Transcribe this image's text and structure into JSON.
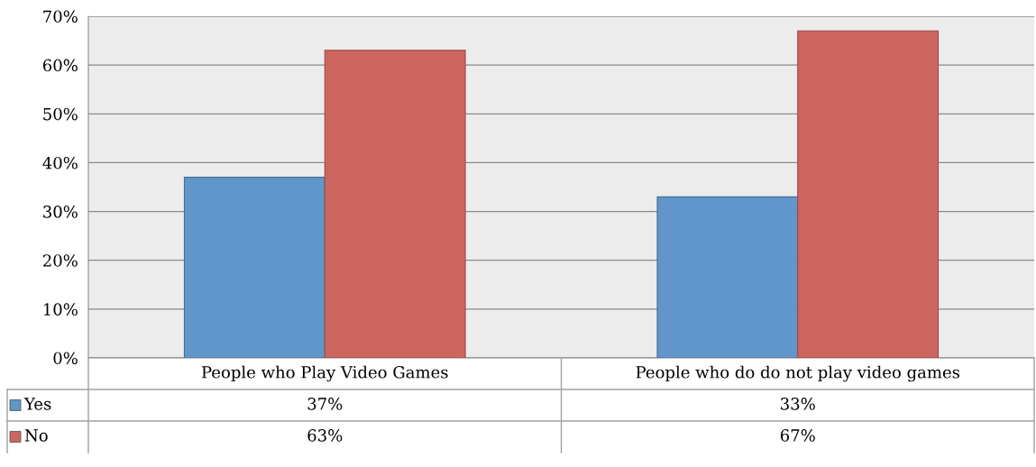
{
  "chart_data": {
    "type": "bar",
    "categories": [
      "People who Play Video Games",
      "People who do do not play video games"
    ],
    "series": [
      {
        "name": "Yes",
        "color": "#6096c9",
        "values": [
          37,
          33
        ],
        "value_labels": [
          "37%",
          "33%"
        ]
      },
      {
        "name": "No",
        "color": "#cd6660",
        "values": [
          63,
          67
        ],
        "value_labels": [
          "63%",
          "67%"
        ]
      }
    ],
    "ylim": [
      0,
      70
    ],
    "yticks": [
      {
        "value": 0,
        "label": "0%"
      },
      {
        "value": 10,
        "label": "10%"
      },
      {
        "value": 20,
        "label": "20%"
      },
      {
        "value": 30,
        "label": "30%"
      },
      {
        "value": 40,
        "label": "40%"
      },
      {
        "value": 50,
        "label": "50%"
      },
      {
        "value": 60,
        "label": "60%"
      },
      {
        "value": 70,
        "label": "70%"
      }
    ],
    "grid": "y",
    "legend": "bottom left"
  }
}
